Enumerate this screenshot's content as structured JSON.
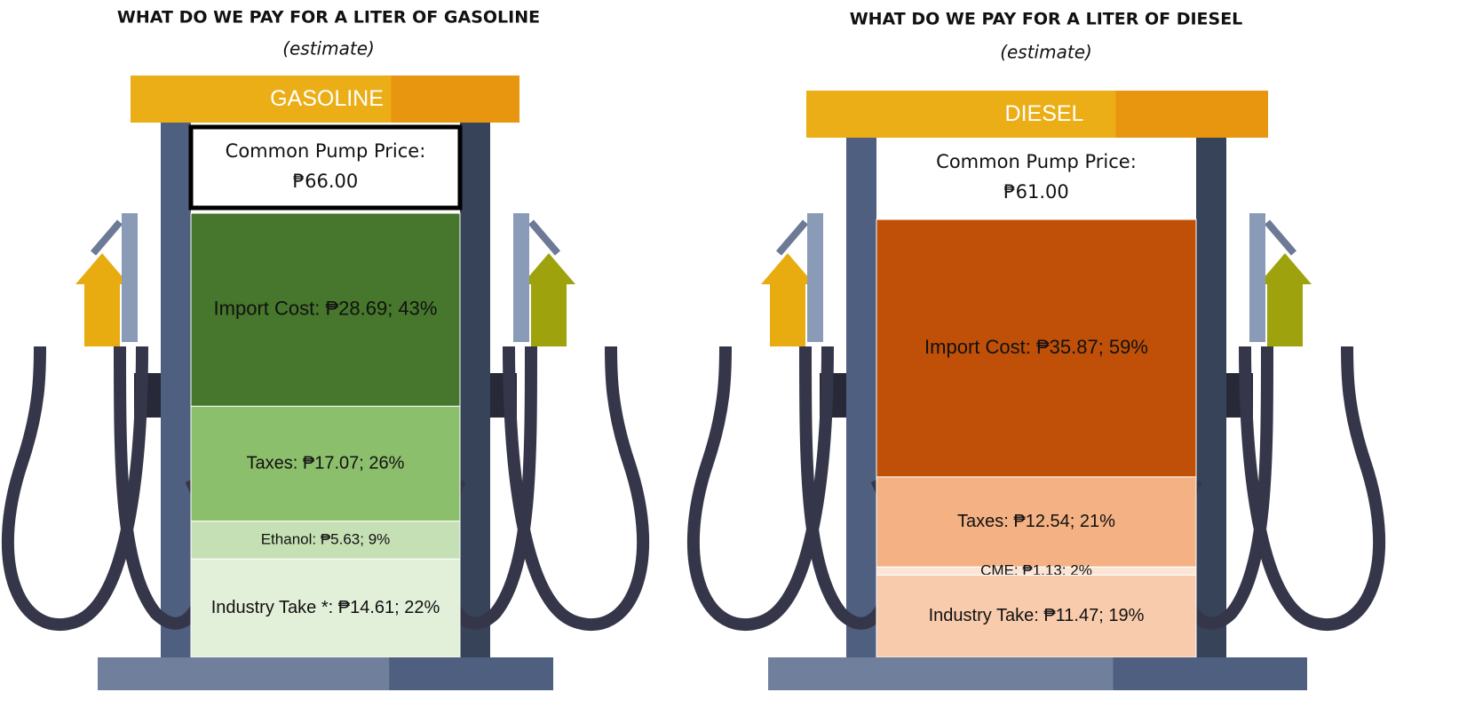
{
  "chart_data": [
    {
      "type": "bar",
      "title": "WHAT DO WE PAY FOR A LITER OF GASOLINE",
      "subtitle": "(estimate)",
      "header": "GASOLINE",
      "price_label": "Common Pump Price:",
      "price": {
        "value": 66.0,
        "label": "₱66.00"
      },
      "values": [
        28.69,
        17.07,
        5.63,
        14.61
      ],
      "value_labels": [
        "Import Cost: ₱28.69; 43%",
        "Taxes: ₱17.07; 26%",
        "Ethanol: ₱5.63; 9%",
        "Industry Take *: ₱14.61; 22%"
      ],
      "colors": [
        "#46772c",
        "#8cbf6c",
        "#c5e0b4",
        "#e2efd9"
      ]
    },
    {
      "type": "bar",
      "title": "WHAT DO WE PAY FOR A LITER OF DIESEL",
      "subtitle": "(estimate)",
      "header": "DIESEL",
      "price_label": "Common Pump Price:",
      "price": {
        "value": 61.0,
        "label": "₱61.00"
      },
      "values": [
        35.87,
        12.54,
        1.13,
        11.47
      ],
      "value_labels": [
        "Import Cost: ₱35.87; 59%",
        "Taxes: ₱12.54; 21%",
        "CME: ₱1.13; 2%",
        "Industry Take: ₱11.47; 19%"
      ],
      "colors": [
        "#c05008",
        "#f4b183",
        "#fbe5d6",
        "#f8cbad"
      ]
    }
  ]
}
